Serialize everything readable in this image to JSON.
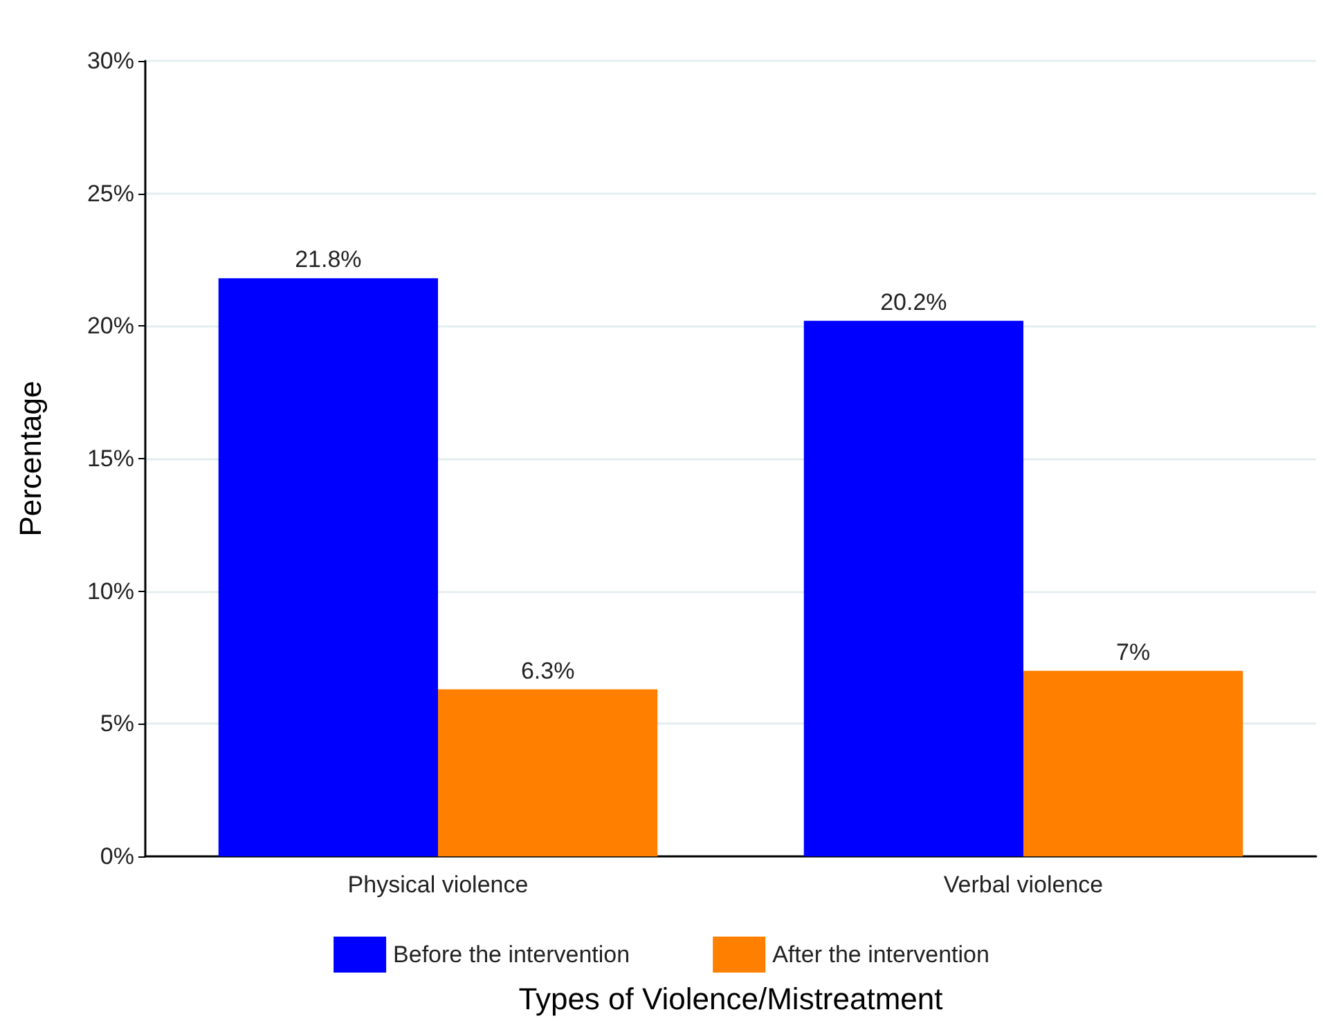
{
  "chart_data": {
    "type": "bar",
    "xlabel": "Types of Violence/Mistreatment",
    "ylabel": "Percentage",
    "categories": [
      "Physical violence",
      "Verbal violence"
    ],
    "series": [
      {
        "name": "Before the intervention",
        "color": "#0000ff",
        "values": [
          21.8,
          20.2
        ],
        "value_labels": [
          "21.8%",
          "20.2%"
        ]
      },
      {
        "name": "After the intervention",
        "color": "#ff7f00",
        "values": [
          6.3,
          7
        ],
        "value_labels": [
          "6.3%",
          "7%"
        ]
      }
    ],
    "ylim": [
      0,
      30
    ],
    "yticks": [
      {
        "value": 0,
        "label": "0%"
      },
      {
        "value": 5,
        "label": "5%"
      },
      {
        "value": 10,
        "label": "10%"
      },
      {
        "value": 15,
        "label": "15%"
      },
      {
        "value": 20,
        "label": "20%"
      },
      {
        "value": 25,
        "label": "25%"
      },
      {
        "value": 30,
        "label": "30%"
      }
    ],
    "grid": "y",
    "legend": "bottom"
  }
}
